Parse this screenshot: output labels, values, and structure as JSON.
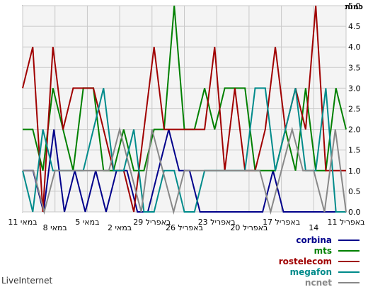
{
  "chart_data": {
    "type": "line",
    "ylabel": "כמות",
    "ylim": [
      0,
      5
    ],
    "yticks": [
      "0.0",
      "0.5",
      "1.0",
      "1.5",
      "2.0",
      "2.5",
      "3.0",
      "3.5",
      "4.0",
      "4.5",
      "5.0"
    ],
    "xtick_labels": [
      "11 באפריל",
      "14",
      "17 באפריל",
      "20 באפריל",
      "23 באפריל",
      "26 באפריל",
      "29 באפריל",
      "2 במאי",
      "5 במאי",
      "8 במאי",
      "11 במאי"
    ],
    "grid": true,
    "legend_position": "bottom-right",
    "series": [
      {
        "name": "corbina",
        "color": "#00008b",
        "values": [
          1,
          1,
          0,
          2,
          0,
          1,
          0,
          1,
          0,
          1,
          1,
          0,
          0,
          1,
          2,
          1,
          1,
          0,
          0,
          0,
          0,
          0,
          0,
          0,
          1,
          0,
          0,
          0,
          0,
          0,
          0,
          0
        ]
      },
      {
        "name": "mts",
        "color": "#008000",
        "values": [
          2,
          2,
          1,
          3,
          2,
          1,
          3,
          3,
          1,
          1,
          2,
          1,
          1,
          2,
          2,
          5,
          2,
          2,
          3,
          2,
          3,
          3,
          3,
          1,
          1,
          1,
          2,
          1,
          3,
          1,
          1,
          3,
          2
        ]
      },
      {
        "name": "rostelecom",
        "color": "#a00000",
        "values": [
          3,
          4,
          0,
          4,
          2,
          3,
          3,
          3,
          2,
          1,
          1,
          0,
          2,
          4,
          2,
          2,
          2,
          2,
          2,
          4,
          1,
          3,
          1,
          1,
          2,
          4,
          2,
          3,
          2,
          5,
          1,
          1,
          1
        ]
      },
      {
        "name": "megafon",
        "color": "#008b8b",
        "values": [
          1,
          0,
          2,
          1,
          1,
          1,
          1,
          2,
          3,
          1,
          1,
          2,
          0,
          0,
          1,
          1,
          0,
          0,
          1,
          1,
          1,
          1,
          1,
          3,
          3,
          1,
          2,
          3,
          1,
          1,
          3,
          0,
          0
        ]
      },
      {
        "name": "ncnet",
        "color": "#888888",
        "values": [
          1,
          1,
          0,
          1,
          1,
          1,
          1,
          1,
          1,
          2,
          1,
          0,
          2,
          1,
          0,
          1,
          1,
          1,
          1,
          1,
          1,
          1,
          1,
          0,
          1,
          2,
          1,
          1,
          0,
          2,
          0
        ]
      }
    ]
  },
  "watermark": "LiveInternet"
}
